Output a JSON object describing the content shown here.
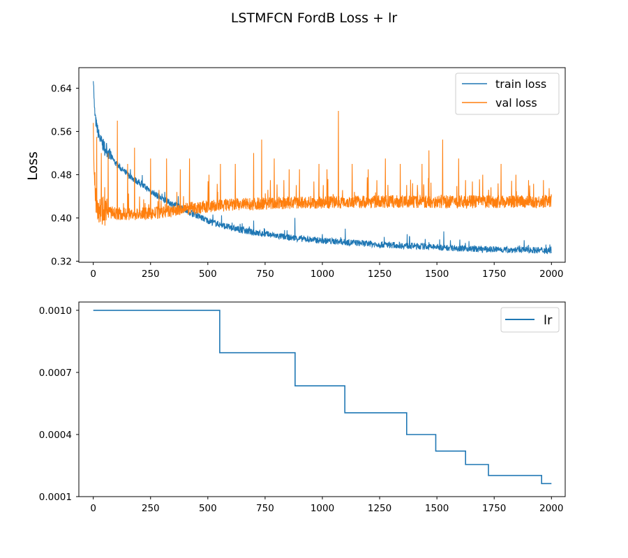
{
  "figure": {
    "title": "LSTMFCN FordB Loss + lr"
  },
  "colors": {
    "train": "#1f77b4",
    "val": "#ff7f0e",
    "lr": "#1f77b4"
  },
  "chart_data": [
    {
      "type": "line",
      "title": "",
      "xlabel": "",
      "ylabel": "Loss",
      "xlim": [
        -63,
        2060
      ],
      "ylim": [
        0.318,
        0.678
      ],
      "xticks": [
        0,
        250,
        500,
        750,
        1000,
        1250,
        1500,
        1750,
        2000
      ],
      "xtick_labels": [
        "0",
        "250",
        "500",
        "750",
        "1000",
        "1250",
        "1500",
        "1750",
        "2000"
      ],
      "yticks": [
        0.32,
        0.4,
        0.48,
        0.56,
        0.64
      ],
      "ytick_labels": [
        "0.32",
        "0.40",
        "0.48",
        "0.56",
        "0.64"
      ],
      "legend": {
        "position": "upper-right",
        "entries": [
          "train loss",
          "val loss"
        ]
      },
      "series": [
        {
          "name": "train loss",
          "color": "#1f77b4",
          "x": [
            0,
            5,
            10,
            20,
            30,
            50,
            75,
            100,
            150,
            200,
            250,
            300,
            350,
            400,
            450,
            500,
            550,
            600,
            650,
            700,
            750,
            800,
            850,
            900,
            950,
            1000,
            1050,
            1100,
            1150,
            1200,
            1250,
            1300,
            1350,
            1400,
            1450,
            1500,
            1550,
            1600,
            1650,
            1700,
            1750,
            1800,
            1850,
            1900,
            1950,
            2000
          ],
          "y": [
            0.665,
            0.6,
            0.58,
            0.56,
            0.545,
            0.53,
            0.515,
            0.5,
            0.48,
            0.465,
            0.45,
            0.435,
            0.425,
            0.415,
            0.405,
            0.395,
            0.388,
            0.382,
            0.377,
            0.373,
            0.37,
            0.367,
            0.364,
            0.362,
            0.36,
            0.358,
            0.357,
            0.355,
            0.354,
            0.352,
            0.351,
            0.35,
            0.349,
            0.348,
            0.347,
            0.346,
            0.345,
            0.344,
            0.343,
            0.342,
            0.342,
            0.341,
            0.341,
            0.341,
            0.34,
            0.34
          ],
          "spikes": [
            [
              50,
              0.515
            ],
            [
              100,
              0.5
            ],
            [
              300,
              0.445
            ],
            [
              560,
              0.405
            ],
            [
              650,
              0.39
            ],
            [
              700,
              0.395
            ],
            [
              880,
              0.4
            ],
            [
              1000,
              0.37
            ],
            [
              1100,
              0.38
            ],
            [
              1270,
              0.365
            ],
            [
              1370,
              0.37
            ],
            [
              1530,
              0.375
            ],
            [
              1600,
              0.36
            ],
            [
              1900,
              0.35
            ]
          ]
        },
        {
          "name": "val loss",
          "color": "#ff7f0e",
          "x": [
            0,
            5,
            10,
            20,
            30,
            50,
            75,
            100,
            150,
            200,
            250,
            300,
            350,
            400,
            450,
            500,
            550,
            600,
            650,
            700,
            750,
            800,
            850,
            900,
            950,
            1000,
            1050,
            1100,
            1150,
            1200,
            1250,
            1300,
            1350,
            1400,
            1450,
            1500,
            1550,
            1600,
            1650,
            1700,
            1750,
            1800,
            1850,
            1900,
            1950,
            2000
          ],
          "y": [
            0.59,
            0.47,
            0.44,
            0.425,
            0.418,
            0.413,
            0.41,
            0.408,
            0.407,
            0.407,
            0.408,
            0.41,
            0.413,
            0.416,
            0.419,
            0.421,
            0.423,
            0.424,
            0.425,
            0.426,
            0.427,
            0.427,
            0.428,
            0.428,
            0.429,
            0.429,
            0.429,
            0.43,
            0.43,
            0.43,
            0.43,
            0.43,
            0.43,
            0.43,
            0.43,
            0.43,
            0.43,
            0.43,
            0.43,
            0.43,
            0.43,
            0.43,
            0.43,
            0.43,
            0.43,
            0.432
          ],
          "spikes": [
            [
              15,
              0.55
            ],
            [
              35,
              0.52
            ],
            [
              65,
              0.52
            ],
            [
              105,
              0.58
            ],
            [
              150,
              0.5
            ],
            [
              180,
              0.53
            ],
            [
              250,
              0.51
            ],
            [
              320,
              0.51
            ],
            [
              380,
              0.49
            ],
            [
              420,
              0.51
            ],
            [
              505,
              0.48
            ],
            [
              555,
              0.5
            ],
            [
              620,
              0.5
            ],
            [
              700,
              0.52
            ],
            [
              735,
              0.545
            ],
            [
              790,
              0.51
            ],
            [
              855,
              0.49
            ],
            [
              900,
              0.49
            ],
            [
              985,
              0.5
            ],
            [
              1020,
              0.49
            ],
            [
              1070,
              0.598
            ],
            [
              1130,
              0.5
            ],
            [
              1200,
              0.49
            ],
            [
              1275,
              0.51
            ],
            [
              1340,
              0.5
            ],
            [
              1435,
              0.5
            ],
            [
              1465,
              0.525
            ],
            [
              1525,
              0.545
            ],
            [
              1595,
              0.51
            ],
            [
              1625,
              0.47
            ],
            [
              1700,
              0.48
            ],
            [
              1780,
              0.5
            ],
            [
              1845,
              0.48
            ],
            [
              1900,
              0.47
            ],
            [
              1965,
              0.47
            ],
            [
              1990,
              0.455
            ]
          ]
        }
      ]
    },
    {
      "type": "line",
      "title": "",
      "xlabel": "",
      "ylabel": "",
      "xlim": [
        -63,
        2060
      ],
      "ylim": [
        0.0001,
        0.00104
      ],
      "xticks": [
        0,
        250,
        500,
        750,
        1000,
        1250,
        1500,
        1750,
        2000
      ],
      "xtick_labels": [
        "0",
        "250",
        "500",
        "750",
        "1000",
        "1250",
        "1500",
        "1750",
        "2000"
      ],
      "yticks": [
        0.0001,
        0.0004,
        0.0007,
        0.001
      ],
      "ytick_labels": [
        "0.0001",
        "0.0004",
        "0.0007",
        "0.0010"
      ],
      "legend": {
        "position": "upper-right",
        "entries": [
          "lr"
        ]
      },
      "series": [
        {
          "name": "lr",
          "color": "#1f77b4",
          "x": [
            0,
            552,
            552,
            881,
            881,
            1098,
            1098,
            1368,
            1368,
            1495,
            1495,
            1625,
            1625,
            1725,
            1725,
            1957,
            1957,
            2000
          ],
          "y": [
            0.001,
            0.001,
            0.000795,
            0.000795,
            0.000635,
            0.000635,
            0.000505,
            0.000505,
            0.0004,
            0.0004,
            0.00032,
            0.00032,
            0.000255,
            0.000255,
            0.000202,
            0.000202,
            0.000163,
            0.000163
          ]
        }
      ]
    }
  ]
}
